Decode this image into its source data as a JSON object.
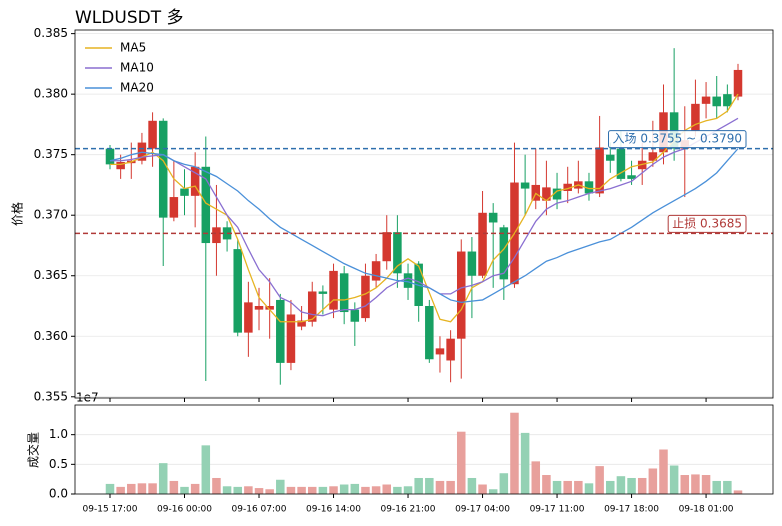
{
  "chart_data": [
    {
      "type": "candlestick",
      "title": "WLDUSDT  多",
      "y_label": "价格",
      "categories": [
        "09-15 17:00",
        null,
        null,
        null,
        null,
        null,
        null,
        "09-16 00:00",
        null,
        null,
        null,
        null,
        null,
        null,
        "09-16 07:00",
        null,
        null,
        null,
        null,
        null,
        null,
        "09-16 14:00",
        null,
        null,
        null,
        null,
        null,
        null,
        "09-16 21:00",
        null,
        null,
        null,
        null,
        null,
        null,
        "09-17 04:00",
        null,
        null,
        null,
        null,
        null,
        null,
        "09-17 11:00",
        null,
        null,
        null,
        null,
        null,
        null,
        "09-17 18:00",
        null,
        null,
        null,
        null,
        null,
        null,
        "09-18 01:00",
        null,
        null,
        null
      ],
      "open": [
        0.3755,
        0.3738,
        0.3743,
        0.3745,
        0.3755,
        0.3778,
        0.3698,
        0.3722,
        0.3716,
        0.374,
        0.3677,
        0.369,
        0.3672,
        0.3603,
        0.3622,
        0.3622,
        0.363,
        0.3578,
        0.3608,
        0.3612,
        0.3637,
        0.3622,
        0.3652,
        0.3622,
        0.3615,
        0.3646,
        0.3662,
        0.3686,
        0.3652,
        0.366,
        0.3625,
        0.3585,
        0.358,
        0.3598,
        0.367,
        0.365,
        0.3702,
        0.369,
        0.3643,
        0.3727,
        0.3712,
        0.3712,
        0.3722,
        0.372,
        0.3722,
        0.3728,
        0.3718,
        0.375,
        0.3755,
        0.3733,
        0.3738,
        0.3745,
        0.3752,
        0.3785,
        0.3755,
        0.377,
        0.3792,
        0.3798,
        0.38,
        0.3798
      ],
      "high": [
        0.3758,
        0.375,
        0.376,
        0.3768,
        0.3785,
        0.378,
        0.3745,
        0.3738,
        0.3752,
        0.3765,
        0.3725,
        0.3695,
        0.368,
        0.3645,
        0.364,
        0.3648,
        0.3635,
        0.363,
        0.3625,
        0.3645,
        0.3642,
        0.366,
        0.3658,
        0.3628,
        0.366,
        0.3668,
        0.37,
        0.37,
        0.366,
        0.3662,
        0.363,
        0.36,
        0.3605,
        0.368,
        0.3682,
        0.372,
        0.371,
        0.3692,
        0.376,
        0.375,
        0.3755,
        0.3745,
        0.3735,
        0.374,
        0.3745,
        0.3735,
        0.3782,
        0.376,
        0.377,
        0.3745,
        0.376,
        0.3778,
        0.3808,
        0.3838,
        0.379,
        0.3812,
        0.381,
        0.3815,
        0.3808,
        0.3825
      ],
      "low": [
        0.3738,
        0.373,
        0.373,
        0.3742,
        0.374,
        0.3658,
        0.3695,
        0.37,
        0.369,
        0.3563,
        0.365,
        0.367,
        0.36,
        0.3583,
        0.3605,
        0.3598,
        0.356,
        0.3572,
        0.3605,
        0.3608,
        0.3618,
        0.3615,
        0.361,
        0.3592,
        0.3612,
        0.364,
        0.3655,
        0.364,
        0.363,
        0.3612,
        0.3578,
        0.357,
        0.3562,
        0.3565,
        0.3615,
        0.3648,
        0.364,
        0.363,
        0.364,
        0.37,
        0.3705,
        0.37,
        0.3705,
        0.371,
        0.3718,
        0.3712,
        0.3715,
        0.3735,
        0.3728,
        0.3725,
        0.3725,
        0.374,
        0.3742,
        0.3745,
        0.3715,
        0.3765,
        0.378,
        0.378,
        0.3785,
        0.3795
      ],
      "close": [
        0.3742,
        0.3744,
        0.3745,
        0.376,
        0.3778,
        0.3698,
        0.3715,
        0.3716,
        0.374,
        0.3677,
        0.369,
        0.368,
        0.3603,
        0.3628,
        0.3625,
        0.3625,
        0.3578,
        0.3618,
        0.3613,
        0.3637,
        0.3635,
        0.3654,
        0.362,
        0.3612,
        0.365,
        0.3662,
        0.3686,
        0.3652,
        0.364,
        0.3625,
        0.3581,
        0.359,
        0.3598,
        0.367,
        0.365,
        0.3702,
        0.3694,
        0.3647,
        0.3727,
        0.3722,
        0.3725,
        0.3723,
        0.3713,
        0.3726,
        0.3728,
        0.3718,
        0.3756,
        0.3745,
        0.373,
        0.373,
        0.3745,
        0.3752,
        0.3785,
        0.3755,
        0.3762,
        0.3792,
        0.3798,
        0.379,
        0.379,
        0.382
      ],
      "up_color": "#d4382f",
      "down_color": "#17a063",
      "series": [
        {
          "name": "MA5",
          "color": "#e6b422",
          "values": [
            0.3742,
            0.3742,
            0.3744,
            0.3748,
            0.3752,
            0.3745,
            0.373,
            0.3722,
            0.3724,
            0.371,
            0.3705,
            0.37,
            0.368,
            0.3655,
            0.3632,
            0.3622,
            0.3612,
            0.3612,
            0.3612,
            0.3614,
            0.3622,
            0.363,
            0.363,
            0.3632,
            0.3635,
            0.364,
            0.3648,
            0.3658,
            0.3664,
            0.3658,
            0.3636,
            0.3614,
            0.3612,
            0.3622,
            0.364,
            0.3645,
            0.3663,
            0.3672,
            0.3685,
            0.37,
            0.3718,
            0.3712,
            0.372,
            0.3722,
            0.3725,
            0.3722,
            0.3722,
            0.373,
            0.3735,
            0.374,
            0.3742,
            0.3744,
            0.3752,
            0.3762,
            0.377,
            0.3775,
            0.3778,
            0.378,
            0.3786,
            0.38
          ]
        },
        {
          "name": "MA10",
          "color": "#8a6fd1",
          "values": [
            0.3745,
            0.3745,
            0.3746,
            0.3748,
            0.3749,
            0.375,
            0.3745,
            0.374,
            0.3735,
            0.373,
            0.3715,
            0.37,
            0.369,
            0.3672,
            0.3655,
            0.3645,
            0.3632,
            0.3628,
            0.362,
            0.3618,
            0.3617,
            0.362,
            0.3622,
            0.3622,
            0.3625,
            0.3632,
            0.364,
            0.3645,
            0.3648,
            0.3645,
            0.364,
            0.3635,
            0.3635,
            0.364,
            0.3642,
            0.3645,
            0.365,
            0.3652,
            0.3665,
            0.368,
            0.3695,
            0.3705,
            0.371,
            0.3712,
            0.3715,
            0.3718,
            0.372,
            0.3722,
            0.3725,
            0.3728,
            0.3735,
            0.3742,
            0.3748,
            0.3752,
            0.3755,
            0.376,
            0.3765,
            0.377,
            0.3775,
            0.378
          ]
        },
        {
          "name": "MA20",
          "color": "#4a90d9",
          "values": [
            0.3745,
            0.3747,
            0.375,
            0.3752,
            0.3751,
            0.375,
            0.3745,
            0.3742,
            0.374,
            0.3736,
            0.3732,
            0.3726,
            0.372,
            0.3712,
            0.3705,
            0.3697,
            0.369,
            0.3685,
            0.368,
            0.3675,
            0.367,
            0.3665,
            0.366,
            0.3656,
            0.3652,
            0.365,
            0.3648,
            0.3646,
            0.3645,
            0.3642,
            0.364,
            0.3635,
            0.363,
            0.3628,
            0.3629,
            0.363,
            0.3635,
            0.364,
            0.3645,
            0.365,
            0.3656,
            0.3662,
            0.3665,
            0.3669,
            0.3672,
            0.3675,
            0.3678,
            0.368,
            0.3685,
            0.369,
            0.3696,
            0.3702,
            0.3707,
            0.3712,
            0.3717,
            0.3722,
            0.3728,
            0.3735,
            0.3745,
            0.3755
          ]
        }
      ],
      "hlines": [
        {
          "value": 0.3755,
          "label": "入场 0.3755 ~ 0.3790",
          "color": "#2e6fad"
        },
        {
          "value": 0.3685,
          "label": "止损 0.3685",
          "color": "#b03a38"
        }
      ],
      "ylim": [
        0.3549,
        0.3853
      ],
      "yticks": [
        0.355,
        {
          "value": 0.36,
          "label": "0.360"
        },
        0.365,
        {
          "value": 0.37,
          "label": "0.370"
        },
        0.375,
        {
          "value": 0.38,
          "label": "0.380"
        },
        0.385
      ],
      "grid": true,
      "legend": "upper left"
    },
    {
      "type": "bar",
      "y_label": "成交量",
      "y_offset_label": "1e7",
      "values": [
        0.17,
        0.12,
        0.17,
        0.18,
        0.18,
        0.52,
        0.22,
        0.12,
        0.17,
        0.82,
        0.27,
        0.13,
        0.12,
        0.13,
        0.1,
        0.08,
        0.24,
        0.12,
        0.12,
        0.12,
        0.12,
        0.13,
        0.16,
        0.17,
        0.12,
        0.13,
        0.16,
        0.12,
        0.13,
        0.27,
        0.27,
        0.22,
        0.22,
        1.05,
        0.27,
        0.16,
        0.08,
        0.35,
        1.37,
        1.03,
        0.55,
        0.32,
        0.22,
        0.22,
        0.22,
        0.18,
        0.47,
        0.22,
        0.3,
        0.27,
        0.27,
        0.43,
        0.75,
        0.48,
        0.32,
        0.33,
        0.32,
        0.22,
        0.22,
        0.06
      ],
      "up_color": "#e8a09c",
      "down_color": "#94d1b4",
      "ylim": [
        0,
        1.5
      ],
      "yticks": [
        {
          "value": 0,
          "label": "0.0"
        },
        0.5,
        {
          "value": 1,
          "label": "1.0"
        }
      ],
      "grid": true
    }
  ]
}
